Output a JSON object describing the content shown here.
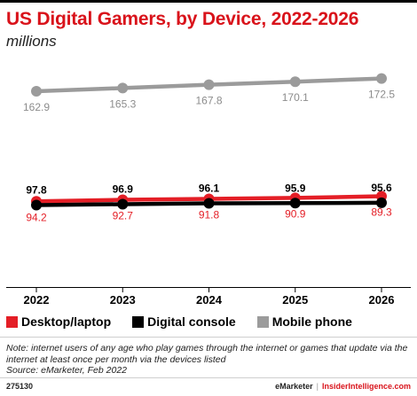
{
  "header": {
    "title": "US Digital Gamers, by Device, 2022-2026",
    "subtitle": "millions"
  },
  "colors": {
    "desktop": "#e41e26",
    "console": "#000000",
    "mobile": "#9b9b9b",
    "title": "#d9131b"
  },
  "chart_data": {
    "type": "line",
    "title": "US Digital Gamers, by Device, 2022-2026",
    "subtitle": "millions",
    "x": [
      "2022",
      "2023",
      "2024",
      "2025",
      "2026"
    ],
    "ylim": [
      0,
      180
    ],
    "grid": false,
    "legend_position": "bottom",
    "series": [
      {
        "name": "Desktop/laptop",
        "color": "#e41e26",
        "values": [
          94.2,
          92.7,
          91.8,
          90.9,
          89.3
        ],
        "labels": [
          "94.2",
          "92.7",
          "91.8",
          "90.9",
          "89.3"
        ],
        "label_pos": "below"
      },
      {
        "name": "Digital console",
        "color": "#000000",
        "values": [
          97.8,
          96.9,
          96.1,
          95.9,
          95.6
        ],
        "labels": [
          "97.8",
          "96.9",
          "96.1",
          "95.9",
          "95.6"
        ],
        "label_pos": "above"
      },
      {
        "name": "Mobile phone",
        "color": "#9b9b9b",
        "values": [
          162.9,
          165.3,
          167.8,
          170.1,
          172.5
        ],
        "labels": [
          "162.9",
          "165.3",
          "167.8",
          "170.1",
          "172.5"
        ],
        "label_pos": "below"
      }
    ]
  },
  "legend": [
    {
      "label": "Desktop/laptop",
      "color": "#e41e26"
    },
    {
      "label": "Digital console",
      "color": "#000000"
    },
    {
      "label": "Mobile phone",
      "color": "#9b9b9b"
    }
  ],
  "note": {
    "line1": "Note: internet users of any age who play games through the internet or games that update via the internet at least once per month via the devices listed",
    "line2": "Source: eMarketer, Feb 2022"
  },
  "footer": {
    "id": "275130",
    "brand": "eMarketer",
    "separator": "|",
    "brand2": "InsiderIntelligence.com"
  }
}
